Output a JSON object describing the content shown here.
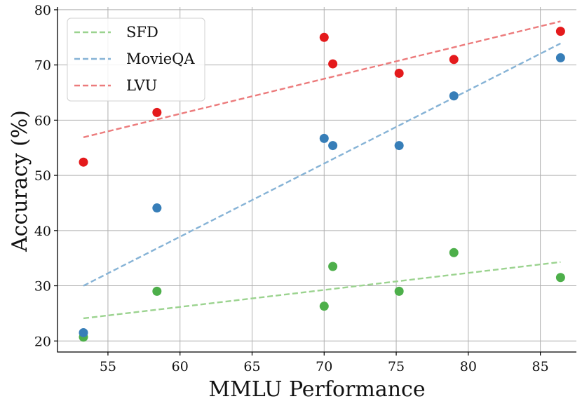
{
  "chart_data": {
    "type": "scatter",
    "xlabel": "MMLU Performance",
    "ylabel": "Accuracy (%)",
    "xlim": [
      51.5,
      87.5
    ],
    "ylim": [
      18,
      80.5
    ],
    "xticks": [
      55,
      60,
      65,
      70,
      75,
      80,
      85
    ],
    "yticks": [
      20,
      30,
      40,
      50,
      60,
      70,
      80
    ],
    "grid": true,
    "legend_position": "top-left",
    "x": [
      53.3,
      58.4,
      70.0,
      70.6,
      75.2,
      79.0,
      86.4
    ],
    "series": [
      {
        "name": "SFD",
        "color": "#4daf4a",
        "trend_color": "#9bd38f",
        "values": [
          20.7,
          29.0,
          26.3,
          33.5,
          29.0,
          36.0,
          31.5
        ],
        "trend": [
          24.1,
          34.3
        ]
      },
      {
        "name": "MovieQA",
        "color": "#377eb8",
        "trend_color": "#86b3d6",
        "values": [
          21.5,
          44.1,
          56.7,
          55.4,
          55.4,
          64.4,
          71.3
        ],
        "trend": [
          30.0,
          73.9
        ]
      },
      {
        "name": "LVU",
        "color": "#e41a1c",
        "trend_color": "#ec7b7c",
        "values": [
          52.4,
          61.4,
          75.0,
          70.2,
          68.5,
          71.0,
          76.1
        ],
        "trend": [
          56.9,
          77.9
        ]
      }
    ]
  }
}
